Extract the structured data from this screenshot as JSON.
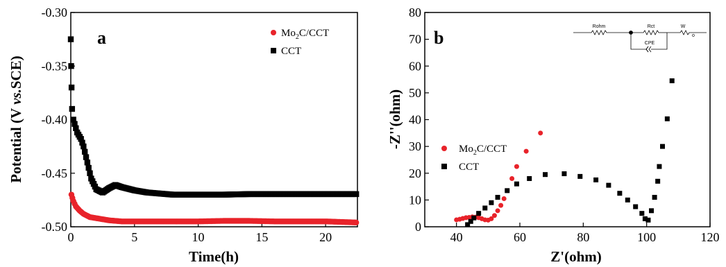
{
  "chart_data": [
    {
      "type": "scatter",
      "panel_label": "a",
      "xlabel": "Time(h)",
      "ylabel": "Potential (V vs.SCE)",
      "ylabel_parts": {
        "prefix": "Potential (V ",
        "italic": "vs.",
        "suffix": "SCE)"
      },
      "xlim": [
        0,
        22.5
      ],
      "ylim": [
        -0.5,
        -0.3
      ],
      "x_ticks": [
        0,
        5,
        10,
        15,
        20
      ],
      "x_tick_labels": [
        "0",
        "5",
        "10",
        "15",
        "20"
      ],
      "y_ticks": [
        -0.3,
        -0.35,
        -0.4,
        -0.45,
        -0.5
      ],
      "y_tick_labels": [
        "-0.30",
        "-0.35",
        "-0.40",
        "-0.45",
        "-0.50"
      ],
      "legend_position": "top-right",
      "series": [
        {
          "name": "Mo2C/CCT",
          "legend": {
            "base": "Mo",
            "sub": "2",
            "rest": "C/CCT"
          },
          "color": "#e8232a",
          "marker": "circle",
          "points": [
            [
              0.05,
              -0.47
            ],
            [
              0.2,
              -0.476
            ],
            [
              0.4,
              -0.481
            ],
            [
              0.7,
              -0.485
            ],
            [
              1.0,
              -0.488
            ],
            [
              1.5,
              -0.491
            ],
            [
              2.0,
              -0.492
            ],
            [
              3.0,
              -0.494
            ],
            [
              4.0,
              -0.495
            ],
            [
              6.0,
              -0.495
            ],
            [
              8.0,
              -0.495
            ],
            [
              10.0,
              -0.495
            ],
            [
              12.0,
              -0.4945
            ],
            [
              14.0,
              -0.4945
            ],
            [
              16.0,
              -0.495
            ],
            [
              18.0,
              -0.495
            ],
            [
              20.0,
              -0.495
            ],
            [
              22.4,
              -0.496
            ]
          ]
        },
        {
          "name": "CCT",
          "legend": {
            "base": "CCT",
            "sub": "",
            "rest": ""
          },
          "color": "#000000",
          "marker": "square",
          "points": [
            [
              0.0,
              -0.325
            ],
            [
              0.03,
              -0.35
            ],
            [
              0.06,
              -0.37
            ],
            [
              0.1,
              -0.39
            ],
            [
              0.2,
              -0.4
            ],
            [
              0.5,
              -0.412
            ],
            [
              0.8,
              -0.418
            ],
            [
              1.0,
              -0.425
            ],
            [
              1.3,
              -0.44
            ],
            [
              1.6,
              -0.455
            ],
            [
              2.0,
              -0.465
            ],
            [
              2.5,
              -0.468
            ],
            [
              3.0,
              -0.464
            ],
            [
              3.5,
              -0.461
            ],
            [
              4.0,
              -0.463
            ],
            [
              5.0,
              -0.466
            ],
            [
              6.0,
              -0.468
            ],
            [
              8.0,
              -0.47
            ],
            [
              10.0,
              -0.47
            ],
            [
              12.0,
              -0.47
            ],
            [
              14.0,
              -0.4695
            ],
            [
              16.0,
              -0.4695
            ],
            [
              18.0,
              -0.4695
            ],
            [
              20.0,
              -0.4695
            ],
            [
              22.4,
              -0.4695
            ]
          ]
        }
      ]
    },
    {
      "type": "scatter",
      "panel_label": "b",
      "xlabel": "Z'(ohm)",
      "ylabel": "-Z''(ohm)",
      "xlim": [
        30,
        120
      ],
      "ylim": [
        0,
        80
      ],
      "x_ticks": [
        40,
        60,
        80,
        100,
        120
      ],
      "x_tick_labels": [
        "40",
        "60",
        "80",
        "100",
        "120"
      ],
      "y_ticks": [
        0,
        10,
        20,
        30,
        40,
        50,
        60,
        70,
        80
      ],
      "y_tick_labels": [
        "0",
        "10",
        "20",
        "30",
        "40",
        "50",
        "60",
        "70",
        "80"
      ],
      "legend_position": "middle-left",
      "series": [
        {
          "name": "Mo2C/CCT",
          "legend": {
            "base": "Mo",
            "sub": "2",
            "rest": "C/CCT"
          },
          "color": "#e8232a",
          "marker": "circle",
          "points": [
            [
              40.0,
              2.6
            ],
            [
              41.0,
              2.8
            ],
            [
              42.0,
              3.1
            ],
            [
              43.0,
              3.4
            ],
            [
              44.0,
              3.5
            ],
            [
              45.0,
              3.7
            ],
            [
              46.0,
              3.6
            ],
            [
              47.0,
              3.4
            ],
            [
              48.0,
              3.0
            ],
            [
              49.0,
              2.6
            ],
            [
              50.0,
              2.5
            ],
            [
              51.0,
              3.0
            ],
            [
              52.0,
              4.2
            ],
            [
              53.0,
              6.0
            ],
            [
              54.0,
              8.0
            ],
            [
              55.0,
              10.5
            ],
            [
              56.0,
              13.5
            ],
            [
              57.5,
              18.0
            ],
            [
              59.0,
              22.5
            ],
            [
              62.0,
              28.2
            ],
            [
              66.5,
              35.0
            ]
          ]
        },
        {
          "name": "CCT",
          "legend": {
            "base": "CCT",
            "sub": "",
            "rest": ""
          },
          "color": "#000000",
          "marker": "square",
          "points": [
            [
              43.5,
              0.8
            ],
            [
              44.5,
              2.0
            ],
            [
              45.5,
              3.3
            ],
            [
              47.0,
              5.0
            ],
            [
              49.0,
              7.0
            ],
            [
              51.0,
              9.0
            ],
            [
              53.0,
              11.0
            ],
            [
              56.0,
              13.5
            ],
            [
              59.0,
              16.0
            ],
            [
              63.0,
              18.0
            ],
            [
              68.0,
              19.5
            ],
            [
              74.0,
              19.8
            ],
            [
              79.0,
              18.8
            ],
            [
              84.0,
              17.5
            ],
            [
              88.0,
              15.5
            ],
            [
              91.5,
              12.5
            ],
            [
              94.0,
              10.0
            ],
            [
              96.5,
              7.5
            ],
            [
              98.5,
              5.0
            ],
            [
              99.5,
              3.0
            ],
            [
              100.5,
              2.5
            ],
            [
              101.5,
              6.0
            ],
            [
              102.5,
              11.0
            ],
            [
              103.5,
              17.0
            ],
            [
              104.0,
              22.5
            ],
            [
              105.0,
              30.0
            ],
            [
              106.5,
              40.3
            ],
            [
              108.0,
              54.5
            ]
          ]
        }
      ],
      "inset_circuit": {
        "labels": [
          "Rohm",
          "Rct",
          "CPE",
          "W"
        ],
        "w_subscript": "o"
      }
    }
  ]
}
